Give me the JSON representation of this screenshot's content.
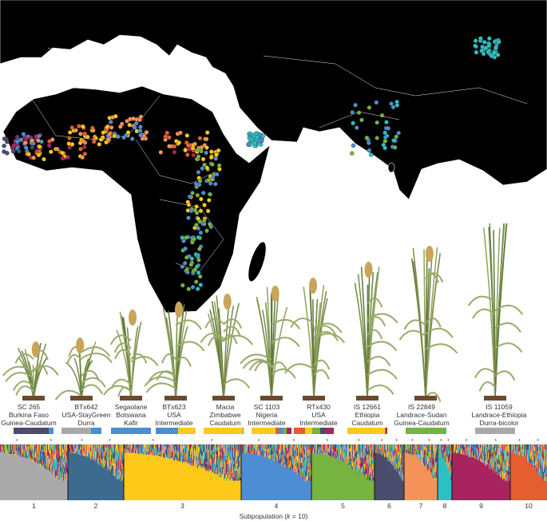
{
  "colors": {
    "1": "#a9a9a9",
    "2": "#3d6b8f",
    "3": "#ffc91a",
    "4": "#4d8ed2",
    "5": "#76b33f",
    "6": "#4a4d6d",
    "7": "#f5935a",
    "8": "#2cc0c2",
    "9": "#a8245f",
    "10": "#e45e2f"
  },
  "specimens": [
    {
      "name": "SC 265",
      "origin": "Burkina Faso",
      "race": "Guinea-Caudatum",
      "composition": [
        [
          6,
          0.87
        ],
        [
          4,
          0.13
        ]
      ]
    },
    {
      "name": "BTx642",
      "origin": "USA-StayGreen",
      "race": "Durra",
      "composition": [
        [
          1,
          0.74
        ],
        [
          4,
          0.26
        ]
      ]
    },
    {
      "name": "Segaolane",
      "origin": "Botswana",
      "race": "Kafir",
      "composition": [
        [
          4,
          1.0
        ]
      ]
    },
    {
      "name": "BTx623",
      "origin": "USA",
      "race": "Intermediate",
      "composition": [
        [
          4,
          0.56
        ],
        [
          3,
          0.44
        ]
      ]
    },
    {
      "name": "Macia",
      "origin": "Zimbabwe",
      "race": "Caudatum",
      "composition": [
        [
          3,
          0.97
        ],
        [
          4,
          0.03
        ]
      ]
    },
    {
      "name": "SC 1103",
      "origin": "Nigeria",
      "race": "Intermediate",
      "composition": [
        [
          3,
          0.6
        ],
        [
          10,
          0.08
        ],
        [
          4,
          0.12
        ],
        [
          5,
          0.08
        ],
        [
          9,
          0.12
        ]
      ]
    },
    {
      "name": "RTx430",
      "origin": "USA",
      "race": "Intermediate",
      "composition": [
        [
          10,
          0.27
        ],
        [
          3,
          0.18
        ],
        [
          5,
          0.2
        ],
        [
          6,
          0.15
        ],
        [
          9,
          0.2
        ]
      ]
    },
    {
      "name": "IS 12661",
      "origin": "Ethiopia",
      "race": "Caudatum",
      "composition": [
        [
          3,
          0.94
        ],
        [
          4,
          0.02
        ],
        [
          9,
          0.04
        ]
      ]
    },
    {
      "name": "IS 22849",
      "origin": "Landrace-Sudan",
      "race": "Guinea-Caudatum",
      "composition": [
        [
          5,
          0.99
        ],
        [
          8,
          0.01
        ]
      ]
    },
    {
      "name": "IS 11059",
      "origin": "Landrace-Ethiopia",
      "race": "Durra-bicolor",
      "composition": [
        [
          1,
          1.0
        ]
      ]
    }
  ],
  "subpopulations": [
    "1",
    "2",
    "3",
    "4",
    "5",
    "6",
    "7",
    "8",
    "9",
    "10"
  ],
  "x_axis_title": "Subpopulation (",
  "x_axis_k": "k",
  "x_axis_suffix": " = 10)"
}
